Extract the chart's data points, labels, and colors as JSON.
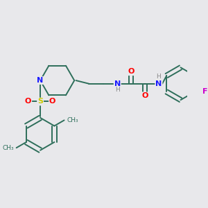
{
  "bg_color": "#e8e8eb",
  "bond_color": "#2d6e5a",
  "atom_colors": {
    "N": "#1a1aff",
    "O": "#ff0000",
    "S": "#cccc00",
    "F": "#cc00cc",
    "H": "#888888"
  },
  "figsize": [
    3.0,
    3.0
  ],
  "dpi": 100
}
